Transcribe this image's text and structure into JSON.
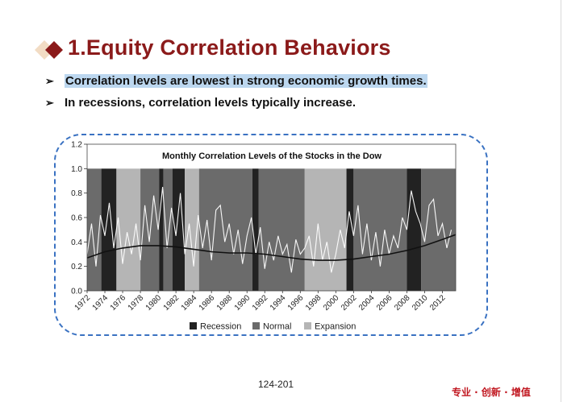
{
  "slide": {
    "title": "1.Equity Correlation Behaviors",
    "bullets": [
      "Correlation levels are lowest in strong economic growth times.",
      "In recessions, correlation levels typically increase."
    ],
    "bullet_icon": "arrowhead-icon",
    "page_number": "124-201",
    "motto": "专业 · 创新 · 增值",
    "colors": {
      "title": "#8b1a1a",
      "highlight": "#bcd7ef",
      "frame": "#3a72c2",
      "motto": "#c0151e"
    }
  },
  "chart_data": {
    "type": "area",
    "title": "Monthly Correlation Levels of the Stocks in the Dow",
    "ylim": [
      0,
      1.2
    ],
    "y_ticks": [
      "0.0",
      "0.2",
      "0.4",
      "0.6",
      "0.8",
      "1.0",
      "1.2"
    ],
    "xlim": [
      1972,
      2013.5
    ],
    "x_ticks": [
      "1972",
      "1974",
      "1976",
      "1978",
      "1980",
      "1982",
      "1984",
      "1986",
      "1988",
      "1990",
      "1992",
      "1994",
      "1996",
      "1998",
      "2000",
      "2002",
      "2004",
      "2006",
      "2008",
      "2010",
      "2012"
    ],
    "legend": [
      {
        "label": "Recession",
        "color": "#222222"
      },
      {
        "label": "Normal",
        "color": "#6b6b6b"
      },
      {
        "label": "Expansion",
        "color": "#b5b5b5"
      }
    ],
    "legend_position": "bottom",
    "regime_periods": [
      {
        "start": 1972.0,
        "end": 1973.6,
        "regime": "Normal"
      },
      {
        "start": 1973.6,
        "end": 1975.3,
        "regime": "Recession"
      },
      {
        "start": 1975.3,
        "end": 1978.0,
        "regime": "Expansion"
      },
      {
        "start": 1978.0,
        "end": 1980.1,
        "regime": "Normal"
      },
      {
        "start": 1980.1,
        "end": 1980.6,
        "regime": "Recession"
      },
      {
        "start": 1980.6,
        "end": 1981.6,
        "regime": "Normal"
      },
      {
        "start": 1981.6,
        "end": 1983.0,
        "regime": "Recession"
      },
      {
        "start": 1983.0,
        "end": 1984.6,
        "regime": "Expansion"
      },
      {
        "start": 1984.6,
        "end": 1990.6,
        "regime": "Normal"
      },
      {
        "start": 1990.6,
        "end": 1991.3,
        "regime": "Recession"
      },
      {
        "start": 1991.3,
        "end": 1996.5,
        "regime": "Normal"
      },
      {
        "start": 1996.5,
        "end": 2001.2,
        "regime": "Expansion"
      },
      {
        "start": 2001.2,
        "end": 2002.0,
        "regime": "Recession"
      },
      {
        "start": 2002.0,
        "end": 2008.0,
        "regime": "Normal"
      },
      {
        "start": 2008.0,
        "end": 2009.6,
        "regime": "Recession"
      },
      {
        "start": 2009.6,
        "end": 2013.5,
        "regime": "Normal"
      }
    ],
    "series": [
      {
        "type": "line",
        "color": "#ffffff",
        "note": "monthly correlation (noisy, approximated)",
        "x": [
          1972.0,
          1972.5,
          1973.0,
          1973.5,
          1974.0,
          1974.5,
          1975.0,
          1975.5,
          1976.0,
          1976.5,
          1977.0,
          1977.5,
          1978.0,
          1978.5,
          1979.0,
          1979.5,
          1980.0,
          1980.5,
          1981.0,
          1981.5,
          1982.0,
          1982.5,
          1983.0,
          1983.5,
          1984.0,
          1984.5,
          1985.0,
          1985.5,
          1986.0,
          1986.5,
          1987.0,
          1987.5,
          1988.0,
          1988.5,
          1989.0,
          1989.5,
          1990.0,
          1990.5,
          1991.0,
          1991.5,
          1992.0,
          1992.5,
          1993.0,
          1993.5,
          1994.0,
          1994.5,
          1995.0,
          1995.5,
          1996.0,
          1996.5,
          1997.0,
          1997.5,
          1998.0,
          1998.5,
          1999.0,
          1999.5,
          2000.0,
          2000.5,
          2001.0,
          2001.5,
          2002.0,
          2002.5,
          2003.0,
          2003.5,
          2004.0,
          2004.5,
          2005.0,
          2005.5,
          2006.0,
          2006.5,
          2007.0,
          2007.5,
          2008.0,
          2008.5,
          2009.0,
          2009.5,
          2010.0,
          2010.5,
          2011.0,
          2011.5,
          2012.0,
          2012.5,
          2013.0
        ],
        "y": [
          0.3,
          0.55,
          0.2,
          0.62,
          0.45,
          0.72,
          0.35,
          0.6,
          0.22,
          0.48,
          0.3,
          0.55,
          0.25,
          0.7,
          0.4,
          0.78,
          0.5,
          0.85,
          0.35,
          0.68,
          0.45,
          0.8,
          0.3,
          0.55,
          0.2,
          0.62,
          0.35,
          0.58,
          0.25,
          0.66,
          0.7,
          0.4,
          0.55,
          0.3,
          0.5,
          0.22,
          0.45,
          0.6,
          0.3,
          0.52,
          0.18,
          0.4,
          0.25,
          0.45,
          0.3,
          0.38,
          0.15,
          0.42,
          0.3,
          0.35,
          0.45,
          0.2,
          0.55,
          0.25,
          0.4,
          0.15,
          0.3,
          0.5,
          0.35,
          0.65,
          0.45,
          0.7,
          0.3,
          0.55,
          0.25,
          0.48,
          0.2,
          0.5,
          0.3,
          0.45,
          0.35,
          0.6,
          0.5,
          0.82,
          0.65,
          0.55,
          0.4,
          0.7,
          0.75,
          0.45,
          0.55,
          0.35,
          0.5
        ]
      },
      {
        "type": "trend",
        "color": "#111111",
        "x": [
          1972,
          1974,
          1976,
          1978,
          1980,
          1982,
          1984,
          1986,
          1988,
          1990,
          1992,
          1994,
          1996,
          1998,
          2000,
          2002,
          2004,
          2006,
          2008,
          2010,
          2012,
          2013.5
        ],
        "y": [
          0.27,
          0.32,
          0.35,
          0.37,
          0.37,
          0.36,
          0.34,
          0.32,
          0.31,
          0.31,
          0.3,
          0.28,
          0.26,
          0.25,
          0.25,
          0.26,
          0.28,
          0.3,
          0.33,
          0.37,
          0.42,
          0.46
        ]
      }
    ]
  }
}
